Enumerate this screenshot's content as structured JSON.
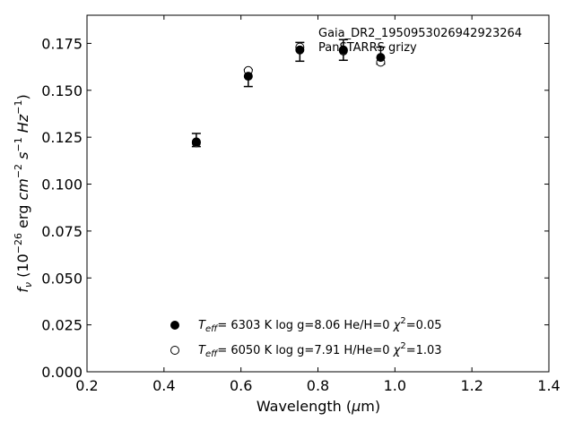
{
  "chart_data": {
    "type": "scatter",
    "title": "",
    "annotations": [
      "Gaia_DR2_1950953026942923264",
      "PanSTARRS grizy"
    ],
    "xlabel": "Wavelength (μm)",
    "ylabel": "f_ν (10^-26 erg cm^-2 s^-1 Hz^-1)",
    "xlim": [
      0.2,
      1.4
    ],
    "ylim": [
      0.0,
      0.19
    ],
    "xticks": [
      0.2,
      0.4,
      0.6,
      0.8,
      1.0,
      1.2,
      1.4
    ],
    "xtick_labels": [
      "0.2",
      "0.4",
      "0.6",
      "0.8",
      "1.0",
      "1.2",
      "1.4"
    ],
    "yticks": [
      0.0,
      0.025,
      0.05,
      0.075,
      0.1,
      0.125,
      0.15,
      0.175
    ],
    "ytick_labels": [
      "0.000",
      "0.025",
      "0.050",
      "0.075",
      "0.100",
      "0.125",
      "0.150",
      "0.175"
    ],
    "grid": false,
    "legend_position": "bottom-center",
    "observed": {
      "x": [
        0.484,
        0.619,
        0.753,
        0.866,
        0.963
      ],
      "y": [
        0.1235,
        0.1565,
        0.1705,
        0.1715,
        0.1685
      ],
      "err": [
        0.0035,
        0.0045,
        0.005,
        0.0055,
        0.0045
      ]
    },
    "series": [
      {
        "name": "T_eff= 6303 K log g=8.06 He/H=0 χ²=0.05",
        "marker": "filled",
        "x": [
          0.484,
          0.619,
          0.753,
          0.866,
          0.963
        ],
        "y": [
          0.1225,
          0.1575,
          0.1715,
          0.1715,
          0.1675
        ]
      },
      {
        "name": "T_eff= 6050 K log g=7.91 H/He=0 χ²=1.03",
        "marker": "open",
        "x": [
          0.484,
          0.619,
          0.753,
          0.866,
          0.963
        ],
        "y": [
          0.122,
          0.1605,
          0.173,
          0.171,
          0.165
        ]
      }
    ]
  }
}
